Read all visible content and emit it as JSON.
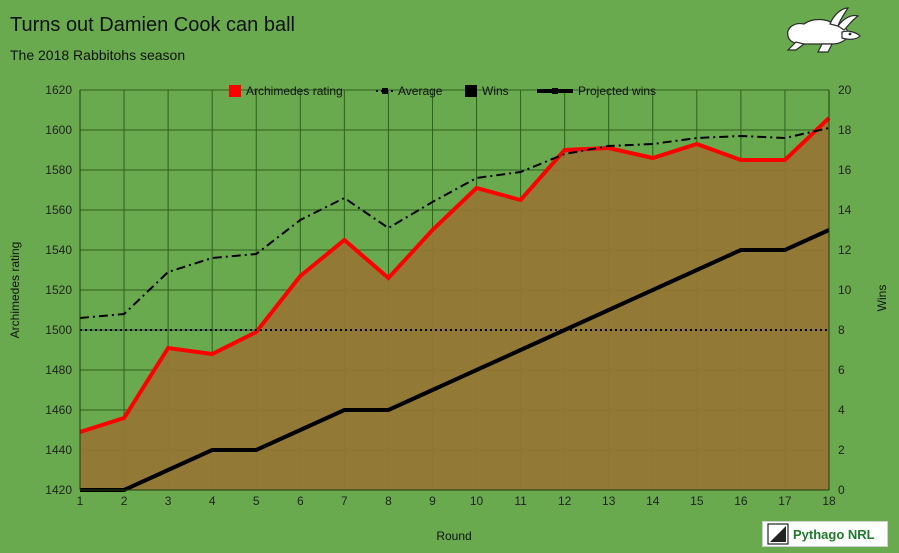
{
  "title": "Turns out Damien Cook can ball",
  "subtitle": "The 2018 Rabbitohs season",
  "brand": {
    "name": "Pythago NRL"
  },
  "icons": {
    "team_logo": "rabbit-icon",
    "brand_logo": "pythago-logo-icon"
  },
  "colors": {
    "background": "#6aaa4f",
    "fill": "#957735",
    "rating": "#ff0000",
    "line": "#000000",
    "grid": "#2f5f1f"
  },
  "chart_data": {
    "type": "line",
    "x": [
      1,
      2,
      3,
      4,
      5,
      6,
      7,
      8,
      9,
      10,
      11,
      12,
      13,
      14,
      15,
      16,
      17,
      18
    ],
    "xlabel": "Round",
    "ylabel": "Archimedes rating",
    "y2label": "Wins",
    "ylim": [
      1420,
      1620
    ],
    "y2lim": [
      0,
      20
    ],
    "yticks": [
      1420,
      1440,
      1460,
      1480,
      1500,
      1520,
      1540,
      1560,
      1580,
      1600,
      1620
    ],
    "y2ticks": [
      0,
      2,
      4,
      6,
      8,
      10,
      12,
      14,
      16,
      18,
      20
    ],
    "grid": true,
    "legend": "top",
    "series": [
      {
        "name": "Archimedes rating",
        "axis": "left",
        "style": "solid-thick",
        "color": "#ff0000",
        "values": [
          1449,
          1456,
          1491,
          1488,
          1499,
          1527,
          1545,
          1526,
          1550,
          1571,
          1565,
          1590,
          1591,
          1586,
          1593,
          1585,
          1585,
          1606
        ]
      },
      {
        "name": "Average",
        "axis": "left",
        "style": "dotted",
        "color": "#000000",
        "values": [
          1500,
          1500,
          1500,
          1500,
          1500,
          1500,
          1500,
          1500,
          1500,
          1500,
          1500,
          1500,
          1500,
          1500,
          1500,
          1500,
          1500,
          1500
        ]
      },
      {
        "name": "Wins",
        "axis": "right",
        "style": "solid-thick",
        "color": "#000000",
        "values": [
          0,
          0,
          1,
          2,
          2,
          3,
          4,
          4,
          5,
          6,
          7,
          8,
          9,
          10,
          11,
          12,
          12,
          13
        ]
      },
      {
        "name": "Projected wins",
        "axis": "right",
        "style": "dash-dot",
        "color": "#000000",
        "values": [
          8.6,
          8.8,
          10.9,
          11.6,
          11.8,
          13.5,
          14.6,
          13.1,
          14.4,
          15.6,
          15.9,
          16.8,
          17.2,
          17.3,
          17.6,
          17.7,
          17.6,
          18.1
        ]
      }
    ]
  }
}
